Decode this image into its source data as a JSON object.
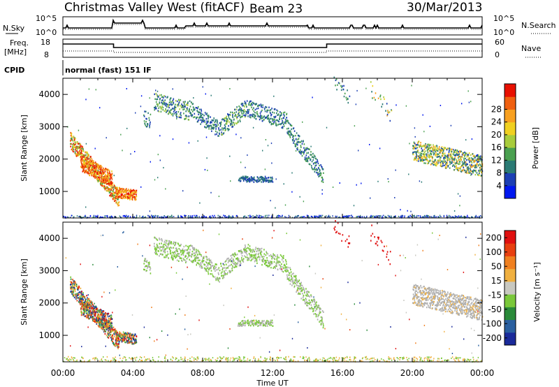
{
  "header": {
    "title": "Christmas Valley West (fitACF)",
    "beam": "Beam 23",
    "date": "30/Mar/2013"
  },
  "noise_panel": {
    "left_label": "N.Sky",
    "right_label": "N.Search",
    "ticks": [
      "10^5",
      "10^0"
    ]
  },
  "freq_panel": {
    "left_label_1": "Freq.",
    "left_label_2": "[MHz]",
    "left_ticks": [
      "18",
      "8"
    ],
    "right_label": "Nave",
    "right_ticks": [
      "60",
      "0"
    ]
  },
  "cpid": {
    "label": "CPID",
    "value": "normal (fast) 151 IF"
  },
  "chart_data": [
    {
      "type": "heatmap",
      "name": "power",
      "ylabel": "Slant Range [km]",
      "xlabel": "",
      "x_ticks": [
        "00:00",
        "04:00",
        "08:00",
        "12:00",
        "16:00",
        "20:00",
        "00:00"
      ],
      "xlim_hours": [
        0,
        24
      ],
      "ylim_km": [
        180,
        4500
      ],
      "y_ticks": [
        1000,
        2000,
        3000,
        4000
      ],
      "colorbar": {
        "label": "Power [dB]",
        "ticks": [
          "4",
          "8",
          "12",
          "16",
          "20",
          "24",
          "28"
        ],
        "colors": [
          "#0018f0",
          "#1c3fb4",
          "#2a7a74",
          "#4aa050",
          "#a8cc3c",
          "#f0d020",
          "#f8a020",
          "#f06010",
          "#e81000"
        ]
      }
    },
    {
      "type": "heatmap",
      "name": "velocity",
      "ylabel": "Slant Range [km]",
      "xlabel": "Time UT",
      "x_ticks": [
        "00:00",
        "04:00",
        "08:00",
        "12:00",
        "16:00",
        "20:00",
        "00:00"
      ],
      "xlim_hours": [
        0,
        24
      ],
      "ylim_km": [
        180,
        4500
      ],
      "y_ticks": [
        1000,
        2000,
        3000,
        4000
      ],
      "colorbar": {
        "label": "Velocity [m s⁻¹]",
        "ticks": [
          "200",
          "100",
          "50",
          "15",
          "-15",
          "-50",
          "-100",
          "-200"
        ],
        "colors": [
          "#1a2a9a",
          "#2a60a0",
          "#2a8a3a",
          "#7ac83a",
          "#c8c8c0",
          "#f0b040",
          "#f08020",
          "#e84010",
          "#e01010"
        ]
      }
    }
  ],
  "colors": {
    "frame": "#000000",
    "ground_scatter": "#b0b0b0"
  }
}
